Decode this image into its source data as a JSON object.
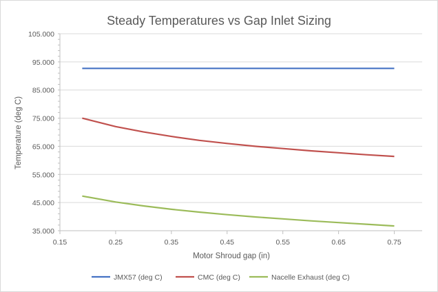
{
  "chart_data": {
    "type": "line",
    "title": "Steady Temperatures vs Gap Inlet Sizing",
    "xlabel": "Motor Shroud gap (in)",
    "ylabel": "Temperature (deg C)",
    "xlim": [
      0.15,
      0.8
    ],
    "ylim": [
      35,
      105
    ],
    "x_ticks": [
      "0.15",
      "0.25",
      "0.35",
      "0.45",
      "0.55",
      "0.65",
      "0.75"
    ],
    "y_ticks": [
      "35.000",
      "45.000",
      "55.000",
      "65.000",
      "75.000",
      "85.000",
      "95.000",
      "105.000"
    ],
    "grid": "horizontal",
    "legend_position": "bottom",
    "x": [
      0.19,
      0.25,
      0.3,
      0.35,
      0.4,
      0.45,
      0.5,
      0.55,
      0.6,
      0.65,
      0.7,
      0.75
    ],
    "series": [
      {
        "name": "JMX57 (deg C)",
        "color": "#4472c4",
        "values": [
          92.7,
          92.7,
          92.7,
          92.7,
          92.7,
          92.7,
          92.7,
          92.7,
          92.7,
          92.7,
          92.7,
          92.7
        ]
      },
      {
        "name": "CMC (deg C)",
        "color": "#c0504d",
        "values": [
          75.0,
          72.0,
          70.1,
          68.5,
          67.1,
          66.0,
          65.0,
          64.2,
          63.4,
          62.7,
          62.0,
          61.4
        ]
      },
      {
        "name": "Nacelle Exhaust (deg C)",
        "color": "#9bbb59",
        "values": [
          47.3,
          45.2,
          43.8,
          42.6,
          41.6,
          40.7,
          39.9,
          39.2,
          38.5,
          37.9,
          37.3,
          36.7
        ]
      }
    ]
  }
}
